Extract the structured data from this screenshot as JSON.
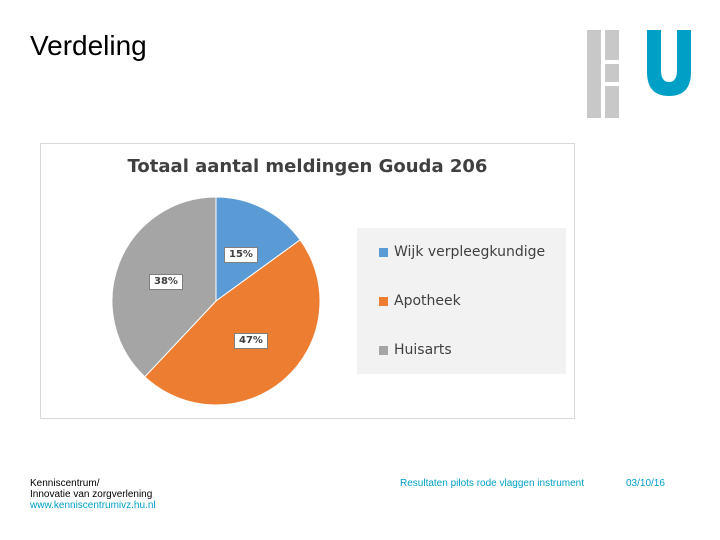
{
  "slide": {
    "title": "Verdeling"
  },
  "footer": {
    "org_line1": "Kenniscentrum/",
    "org_line2": "Innovatie van zorgverlening",
    "url": "www.kenniscentrumivz.hu.nl",
    "subject": "Resultaten pilots rode vlaggen instrument",
    "date": "03/10/16"
  },
  "colors": {
    "logo_grey": "#c8c8c8",
    "logo_blue": "#00a0c6"
  },
  "chart_data": {
    "type": "pie",
    "title": "Totaal aantal meldingen Gouda 206",
    "legend_position": "right",
    "slices": [
      {
        "name": "Wijk verpleegkundige",
        "value": 15,
        "label": "15%",
        "color": "#5b9bd5"
      },
      {
        "name": "Apotheek",
        "value": 47,
        "label": "47%",
        "color": "#ed7d31"
      },
      {
        "name": "Huisarts",
        "value": 38,
        "label": "38%",
        "color": "#a5a5a5"
      }
    ]
  }
}
